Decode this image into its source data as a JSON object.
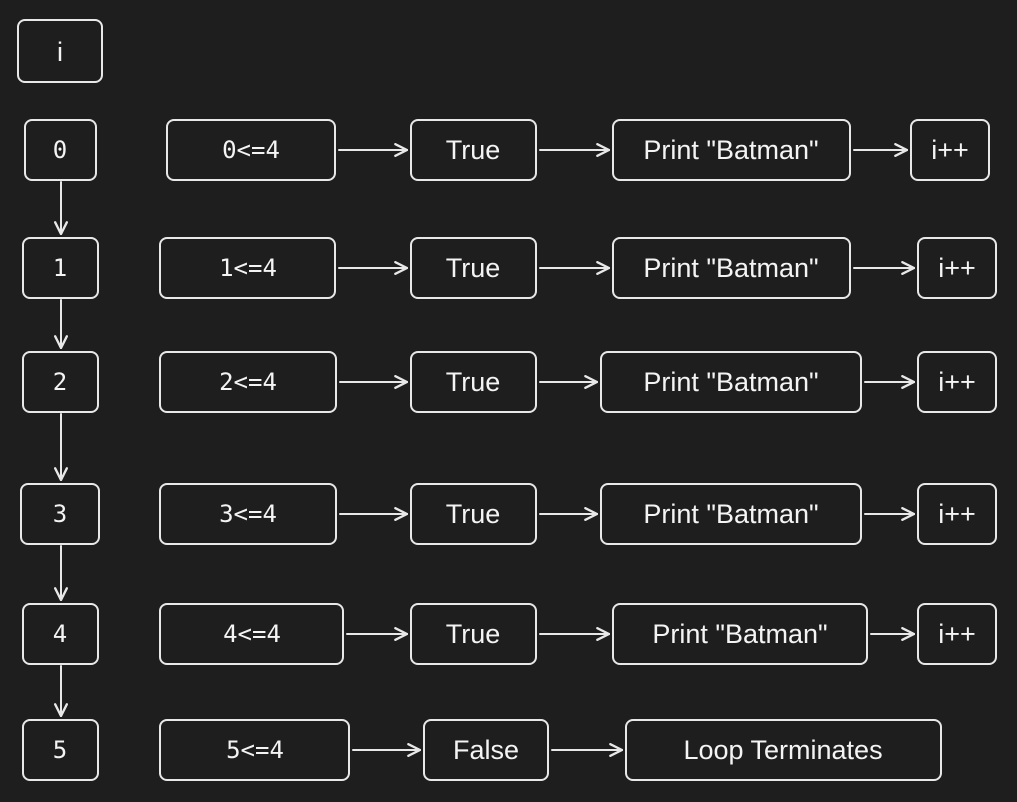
{
  "header": {
    "variable_label": "i"
  },
  "rows": [
    {
      "i": "0",
      "condition": "0<=4",
      "result": "True",
      "action": "Print \"Batman\"",
      "step": "i++"
    },
    {
      "i": "1",
      "condition": "1<=4",
      "result": "True",
      "action": "Print \"Batman\"",
      "step": "i++"
    },
    {
      "i": "2",
      "condition": "2<=4",
      "result": "True",
      "action": "Print \"Batman\"",
      "step": "i++"
    },
    {
      "i": "3",
      "condition": "3<=4",
      "result": "True",
      "action": "Print \"Batman\"",
      "step": "i++"
    },
    {
      "i": "4",
      "condition": "4<=4",
      "result": "True",
      "action": "Print \"Batman\"",
      "step": "i++"
    },
    {
      "i": "5",
      "condition": "5<=4",
      "result": "False",
      "action": "Loop Terminates"
    }
  ],
  "colors": {
    "background": "#1e1e1e",
    "stroke": "#e8e8e8",
    "text": "#f4f4f4"
  }
}
